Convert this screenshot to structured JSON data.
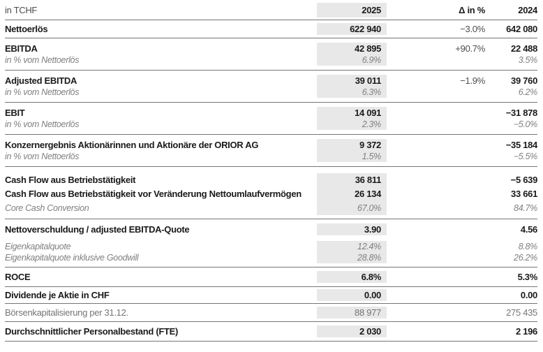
{
  "table": {
    "title_note": "in TCHF",
    "columns": {
      "current": "2025",
      "delta": "Δ in %",
      "prior": "2024"
    },
    "colors": {
      "highlight_column_bg": "#e8e8e8",
      "rule": "#757575",
      "strong_text": "#1a1a1a",
      "muted_text": "#808080",
      "delta_text": "#4d4d4d"
    },
    "sections": [
      {
        "rows": [
          {
            "style": "header",
            "label": "in TCHF",
            "v2025": "2025",
            "delta": "Δ in %",
            "v2024": "2024"
          }
        ]
      },
      {
        "rows": [
          {
            "style": "bold",
            "label": "Nettoerlös",
            "v2025": "622 940",
            "delta": "−3.0%",
            "v2024": "642 080"
          }
        ]
      },
      {
        "rows": [
          {
            "style": "bold",
            "label": "EBITDA",
            "v2025": "42 895",
            "delta": "+90.7%",
            "v2024": "22 488"
          },
          {
            "style": "italic",
            "label": "in % vom Nettoerlös",
            "v2025": "6.9%",
            "delta": "",
            "v2024": "3.5%"
          }
        ]
      },
      {
        "rows": [
          {
            "style": "bold",
            "label": "Adjusted EBITDA",
            "v2025": "39 011",
            "delta": "−1.9%",
            "v2024": "39 760"
          },
          {
            "style": "italic",
            "label": "in % vom Nettoerlös",
            "v2025": "6.3%",
            "delta": "",
            "v2024": "6.2%"
          }
        ]
      },
      {
        "rows": [
          {
            "style": "bold",
            "label": "EBIT",
            "v2025": "14 091",
            "delta": "",
            "v2024": "−31 878"
          },
          {
            "style": "italic",
            "label": "in % vom Nettoerlös",
            "v2025": "2.3%",
            "delta": "",
            "v2024": "−5.0%"
          }
        ]
      },
      {
        "rows": [
          {
            "style": "bold",
            "label": "Konzernergebnis Aktionärinnen und Aktionäre der ORIOR AG",
            "v2025": "9 372",
            "delta": "",
            "v2024": "−35 184"
          },
          {
            "style": "italic",
            "label": "in % vom Nettoerlös",
            "v2025": "1.5%",
            "delta": "",
            "v2024": "−5.5%"
          }
        ]
      },
      {
        "rows": [
          {
            "style": "bold",
            "label": "Cash Flow aus Betriebstätigkeit",
            "v2025": "36 811",
            "delta": "",
            "v2024": "−5 639"
          },
          {
            "style": "bold",
            "label": "Cash Flow aus Betriebstätigkeit vor Veränderung Nettoumlaufvermögen",
            "v2025": "26 134",
            "delta": "",
            "v2024": "33 661"
          },
          {
            "style": "italic",
            "label": "Core Cash Conversion",
            "v2025": "67.0%",
            "delta": "",
            "v2024": "84.7%"
          }
        ]
      },
      {
        "rows": [
          {
            "style": "bold",
            "label": "Nettoverschuldung / adjusted EBITDA-Quote",
            "v2025": "3.90",
            "delta": "",
            "v2024": "4.56"
          },
          {
            "style": "italic",
            "gap": true,
            "label": "Eigenkapitalquote",
            "v2025": "12.4%",
            "delta": "",
            "v2024": "8.8%"
          },
          {
            "style": "italic",
            "label": "Eigenkapitalquote inklusive Goodwill",
            "v2025": "28.8%",
            "delta": "",
            "v2024": "26.2%"
          }
        ]
      },
      {
        "rows": [
          {
            "style": "bold",
            "label": "ROCE",
            "v2025": "6.8%",
            "delta": "",
            "v2024": "5.3%"
          }
        ]
      },
      {
        "rows": [
          {
            "style": "bold",
            "label": "Dividende je Aktie in CHF",
            "v2025": "0.00",
            "delta": "",
            "v2024": "0.00"
          }
        ]
      },
      {
        "rows": [
          {
            "style": "plain",
            "label": "Börsenkapitalisierung per 31.12.",
            "v2025": "88 977",
            "delta": "",
            "v2024": "275 435"
          }
        ]
      },
      {
        "rows": [
          {
            "style": "bold",
            "label": "Durchschnittlicher Personalbestand (FTE)",
            "v2025": "2 030",
            "delta": "",
            "v2024": "2 196"
          }
        ]
      }
    ]
  }
}
